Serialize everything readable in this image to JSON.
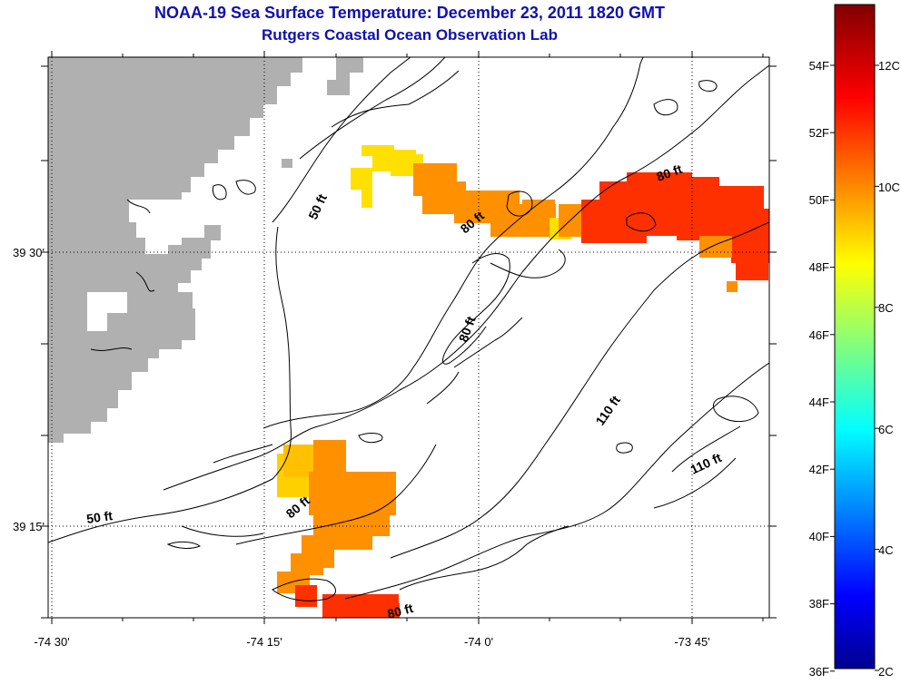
{
  "title": "NOAA-19 Sea Surface Temperature:  December 23, 2011 1820 GMT",
  "subtitle": "Rutgers Coastal Ocean Observation Lab",
  "axes": {
    "x_ticks": [
      "-74 30'",
      "-74 15'",
      "-74 0'",
      "-73 45'"
    ],
    "y_ticks": [
      "39 30'",
      "39 15'"
    ]
  },
  "contour_labels": [
    "50 ft",
    "50 ft",
    "80 ft",
    "80 ft",
    "80 ft",
    "80 ft",
    "80 ft",
    "110 ft",
    "110 ft"
  ],
  "colorbar": {
    "fahrenheit": [
      "54F",
      "52F",
      "50F",
      "48F",
      "46F",
      "44F",
      "42F",
      "40F",
      "38F",
      "36F"
    ],
    "celsius": [
      "12C",
      "10C",
      "8C",
      "6C",
      "4C",
      "2C"
    ],
    "range_c": [
      2,
      13
    ],
    "colormap": "jet"
  },
  "colors": {
    "title": "#1010b0",
    "land": "#b0b0b0",
    "sst_yellow": "#ffe000",
    "sst_orange": "#ff9000",
    "sst_red": "#ff3000"
  }
}
